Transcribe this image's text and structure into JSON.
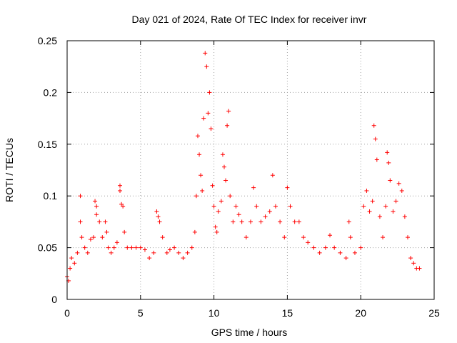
{
  "chart_data": {
    "type": "scatter",
    "title": "Day 021 of 2024, Rate Of TEC Index for receiver invr",
    "xlabel": "GPS time / hours",
    "ylabel": "ROTI / TECUs",
    "xlim": [
      0,
      25
    ],
    "ylim": [
      0,
      0.25
    ],
    "x_ticks": [
      "0",
      "5",
      "10",
      "15",
      "20",
      "25"
    ],
    "y_ticks": [
      "0",
      "0.05",
      "0.1",
      "0.15",
      "0.2",
      "0.25"
    ],
    "grid": true,
    "marker": "plus",
    "color": "#ff0000",
    "series": [
      {
        "points": [
          [
            0.0,
            0.022
          ],
          [
            0.1,
            0.018
          ],
          [
            0.2,
            0.03
          ],
          [
            0.3,
            0.04
          ],
          [
            0.5,
            0.035
          ],
          [
            0.7,
            0.045
          ],
          [
            0.9,
            0.1
          ],
          [
            0.9,
            0.075
          ],
          [
            1.0,
            0.06
          ],
          [
            1.2,
            0.05
          ],
          [
            1.4,
            0.045
          ],
          [
            1.6,
            0.058
          ],
          [
            1.8,
            0.06
          ],
          [
            1.9,
            0.095
          ],
          [
            2.0,
            0.09
          ],
          [
            2.0,
            0.082
          ],
          [
            2.2,
            0.075
          ],
          [
            2.4,
            0.06
          ],
          [
            2.6,
            0.075
          ],
          [
            2.7,
            0.065
          ],
          [
            2.8,
            0.05
          ],
          [
            3.0,
            0.045
          ],
          [
            3.2,
            0.05
          ],
          [
            3.4,
            0.055
          ],
          [
            3.6,
            0.11
          ],
          [
            3.6,
            0.105
          ],
          [
            3.7,
            0.092
          ],
          [
            3.8,
            0.09
          ],
          [
            3.9,
            0.065
          ],
          [
            4.1,
            0.05
          ],
          [
            4.4,
            0.05
          ],
          [
            4.7,
            0.05
          ],
          [
            5.0,
            0.05
          ],
          [
            5.3,
            0.048
          ],
          [
            5.6,
            0.04
          ],
          [
            5.9,
            0.045
          ],
          [
            6.1,
            0.085
          ],
          [
            6.2,
            0.08
          ],
          [
            6.3,
            0.075
          ],
          [
            6.5,
            0.06
          ],
          [
            6.8,
            0.045
          ],
          [
            7.0,
            0.048
          ],
          [
            7.3,
            0.05
          ],
          [
            7.6,
            0.045
          ],
          [
            7.9,
            0.04
          ],
          [
            8.2,
            0.045
          ],
          [
            8.5,
            0.05
          ],
          [
            8.7,
            0.065
          ],
          [
            8.8,
            0.1
          ],
          [
            8.9,
            0.158
          ],
          [
            9.0,
            0.14
          ],
          [
            9.1,
            0.12
          ],
          [
            9.2,
            0.105
          ],
          [
            9.3,
            0.175
          ],
          [
            9.4,
            0.238
          ],
          [
            9.5,
            0.225
          ],
          [
            9.6,
            0.18
          ],
          [
            9.7,
            0.2
          ],
          [
            9.8,
            0.165
          ],
          [
            9.9,
            0.11
          ],
          [
            10.0,
            0.09
          ],
          [
            10.1,
            0.07
          ],
          [
            10.2,
            0.065
          ],
          [
            10.3,
            0.085
          ],
          [
            10.5,
            0.095
          ],
          [
            10.6,
            0.14
          ],
          [
            10.7,
            0.128
          ],
          [
            10.8,
            0.115
          ],
          [
            10.9,
            0.168
          ],
          [
            11.0,
            0.182
          ],
          [
            11.1,
            0.1
          ],
          [
            11.3,
            0.075
          ],
          [
            11.5,
            0.09
          ],
          [
            11.7,
            0.082
          ],
          [
            11.9,
            0.075
          ],
          [
            12.2,
            0.06
          ],
          [
            12.5,
            0.075
          ],
          [
            12.7,
            0.108
          ],
          [
            12.9,
            0.09
          ],
          [
            13.2,
            0.075
          ],
          [
            13.5,
            0.08
          ],
          [
            13.8,
            0.085
          ],
          [
            14.0,
            0.12
          ],
          [
            14.2,
            0.09
          ],
          [
            14.5,
            0.075
          ],
          [
            14.8,
            0.06
          ],
          [
            15.0,
            0.108
          ],
          [
            15.2,
            0.09
          ],
          [
            15.5,
            0.075
          ],
          [
            15.8,
            0.075
          ],
          [
            16.1,
            0.06
          ],
          [
            16.4,
            0.055
          ],
          [
            16.8,
            0.05
          ],
          [
            17.2,
            0.045
          ],
          [
            17.6,
            0.05
          ],
          [
            17.9,
            0.062
          ],
          [
            18.2,
            0.05
          ],
          [
            18.6,
            0.045
          ],
          [
            19.0,
            0.04
          ],
          [
            19.2,
            0.075
          ],
          [
            19.3,
            0.06
          ],
          [
            19.6,
            0.045
          ],
          [
            20.0,
            0.05
          ],
          [
            20.2,
            0.09
          ],
          [
            20.4,
            0.105
          ],
          [
            20.6,
            0.085
          ],
          [
            20.8,
            0.095
          ],
          [
            20.9,
            0.168
          ],
          [
            21.0,
            0.155
          ],
          [
            21.1,
            0.135
          ],
          [
            21.3,
            0.08
          ],
          [
            21.5,
            0.06
          ],
          [
            21.7,
            0.09
          ],
          [
            21.8,
            0.142
          ],
          [
            21.9,
            0.132
          ],
          [
            22.0,
            0.115
          ],
          [
            22.2,
            0.085
          ],
          [
            22.4,
            0.095
          ],
          [
            22.6,
            0.112
          ],
          [
            22.8,
            0.105
          ],
          [
            23.0,
            0.08
          ],
          [
            23.2,
            0.06
          ],
          [
            23.4,
            0.04
          ],
          [
            23.6,
            0.035
          ],
          [
            23.8,
            0.03
          ],
          [
            24.0,
            0.03
          ]
        ]
      }
    ]
  }
}
